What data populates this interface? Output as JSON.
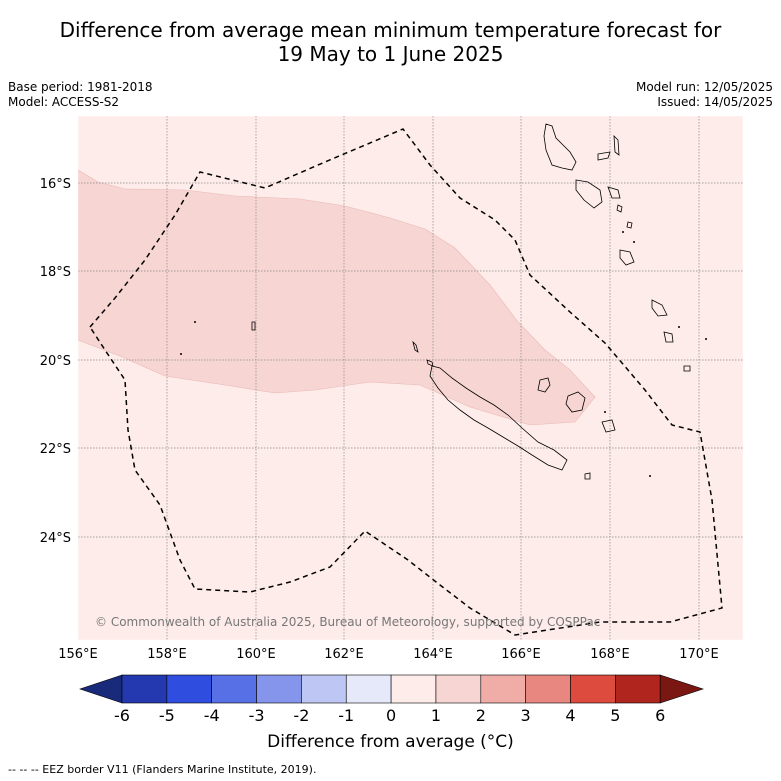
{
  "header": {
    "title_line1": "Difference from average mean minimum temperature forecast for",
    "title_line2": "19 May to 1 June 2025",
    "base_period": "Base period: 1981-2018",
    "model": "Model: ACCESS-S2",
    "model_run": "Model run: 12/05/2025",
    "issued": "Issued: 14/05/2025"
  },
  "map": {
    "lon_labels": [
      "156°E",
      "158°E",
      "160°E",
      "162°E",
      "164°E",
      "166°E",
      "168°E",
      "170°E"
    ],
    "lat_labels": [
      "16°S",
      "18°S",
      "20°S",
      "22°S",
      "24°S"
    ],
    "copyright": "© Commonwealth of Australia 2025, Bureau of Meteorology, supported by COSPPac",
    "colors": {
      "anomaly_0_to_1": "#fdecea",
      "anomaly_1_to_2": "#f7d5d3",
      "grid": "#888888"
    }
  },
  "colorbar": {
    "labels": [
      "-6",
      "-5",
      "-4",
      "-3",
      "-2",
      "-1",
      "0",
      "1",
      "2",
      "3",
      "4",
      "5",
      "6"
    ],
    "colors": [
      "#1a2a7a",
      "#2438b0",
      "#2f4ddf",
      "#5870e6",
      "#8595eb",
      "#bec6f3",
      "#e6e9fa",
      "#fdecea",
      "#f7d5d3",
      "#f0aca7",
      "#e8877f",
      "#dd4a3e",
      "#b0261e",
      "#7a1712"
    ],
    "title": "Difference from average (°C)"
  },
  "footer": {
    "legend": "--  --  -- EEZ border V11 (Flanders Marine Institute, 2019)."
  }
}
